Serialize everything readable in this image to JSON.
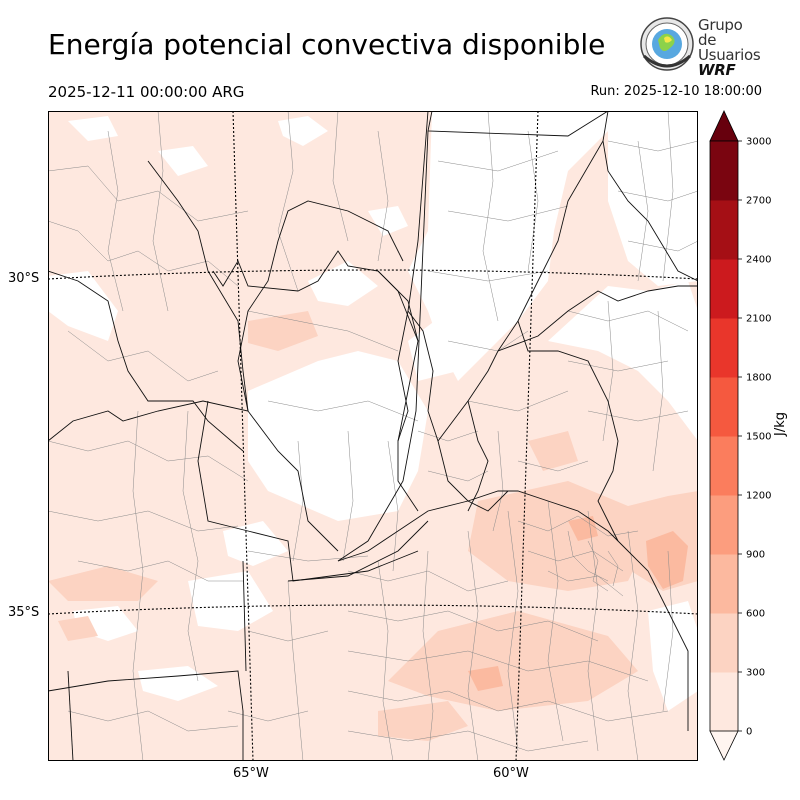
{
  "header": {
    "title": "Energía potencial convectiva disponible",
    "valid_time": "2025-12-11 00:00:00 ARG",
    "run_time": "Run: 2025-12-10 18:00:00"
  },
  "logo": {
    "line1": "Grupo de",
    "line2": "Usuarios",
    "line3": "WRF"
  },
  "map": {
    "lat_labels": [
      "30°S",
      "35°S"
    ],
    "lon_labels": [
      "65°W",
      "60°W"
    ],
    "variable_colors": {
      "background_fill": "#fee8df",
      "moderate_fill": "#fcd3c2",
      "high_fill": "#fbbaa0"
    }
  },
  "colorbar": {
    "units": "J/kg",
    "ticks": [
      "0",
      "300",
      "600",
      "900",
      "1200",
      "1500",
      "1800",
      "2100",
      "2400",
      "2700",
      "3000"
    ],
    "colors": [
      "#fff5f0",
      "#fee8df",
      "#fcd3c2",
      "#fcb99f",
      "#fc9d7e",
      "#fb7d5d",
      "#f5593f",
      "#e9362b",
      "#cc1a1e",
      "#a50f15",
      "#7a0510",
      "#67000d"
    ]
  }
}
